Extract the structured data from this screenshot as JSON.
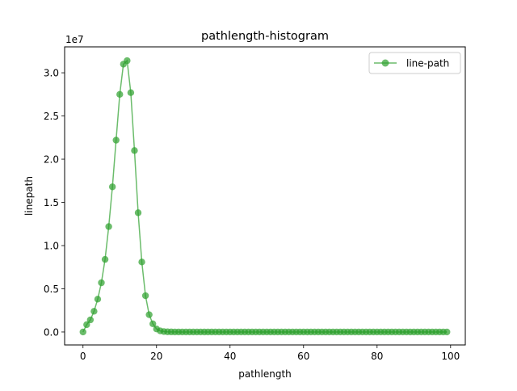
{
  "chart_data": {
    "type": "line",
    "title": "pathlength-histogram",
    "xlabel": "pathlength",
    "ylabel": "linepath",
    "y_scale_label": "1e7",
    "xlim": [
      -5,
      104
    ],
    "ylim": [
      -1500000,
      33000000
    ],
    "x_ticks": [
      0,
      20,
      40,
      60,
      80,
      100
    ],
    "x_tick_labels": [
      "0",
      "20",
      "40",
      "60",
      "80",
      "100"
    ],
    "y_ticks": [
      0,
      5000000,
      10000000,
      15000000,
      20000000,
      25000000,
      30000000
    ],
    "y_tick_labels": [
      "0.0",
      "0.5",
      "1.0",
      "1.5",
      "2.0",
      "2.5",
      "3.0"
    ],
    "grid": false,
    "legend_position": "top-right",
    "series": [
      {
        "name": "line-path",
        "color": "#2ca02c",
        "marker": "circle",
        "x": [
          0,
          1,
          2,
          3,
          4,
          5,
          6,
          7,
          8,
          9,
          10,
          11,
          12,
          13,
          14,
          15,
          16,
          17,
          18,
          19,
          20,
          21,
          22,
          23,
          24,
          25,
          26,
          27,
          28,
          29,
          30,
          31,
          32,
          33,
          34,
          35,
          36,
          37,
          38,
          39,
          40,
          41,
          42,
          43,
          44,
          45,
          46,
          47,
          48,
          49,
          50,
          51,
          52,
          53,
          54,
          55,
          56,
          57,
          58,
          59,
          60,
          61,
          62,
          63,
          64,
          65,
          66,
          67,
          68,
          69,
          70,
          71,
          72,
          73,
          74,
          75,
          76,
          77,
          78,
          79,
          80,
          81,
          82,
          83,
          84,
          85,
          86,
          87,
          88,
          89,
          90,
          91,
          92,
          93,
          94,
          95,
          96,
          97,
          98,
          99
        ],
        "y": [
          0,
          850000,
          1400000,
          2400000,
          3800000,
          5700000,
          8400000,
          12200000,
          16800000,
          22200000,
          27500000,
          31000000,
          31400000,
          27700000,
          21000000,
          13800000,
          8100000,
          4200000,
          2000000,
          950000,
          350000,
          130000,
          50000,
          20000,
          10000,
          5000,
          0,
          0,
          0,
          0,
          0,
          0,
          0,
          0,
          0,
          0,
          0,
          0,
          0,
          0,
          0,
          0,
          0,
          0,
          0,
          0,
          0,
          0,
          0,
          0,
          0,
          0,
          0,
          0,
          0,
          0,
          0,
          0,
          0,
          0,
          0,
          0,
          0,
          0,
          0,
          0,
          0,
          0,
          0,
          0,
          0,
          0,
          0,
          0,
          0,
          0,
          0,
          0,
          0,
          0,
          0,
          0,
          0,
          0,
          0,
          0,
          0,
          0,
          0,
          0,
          0,
          0,
          0,
          0,
          0,
          0,
          0,
          0,
          0,
          0
        ]
      }
    ]
  }
}
